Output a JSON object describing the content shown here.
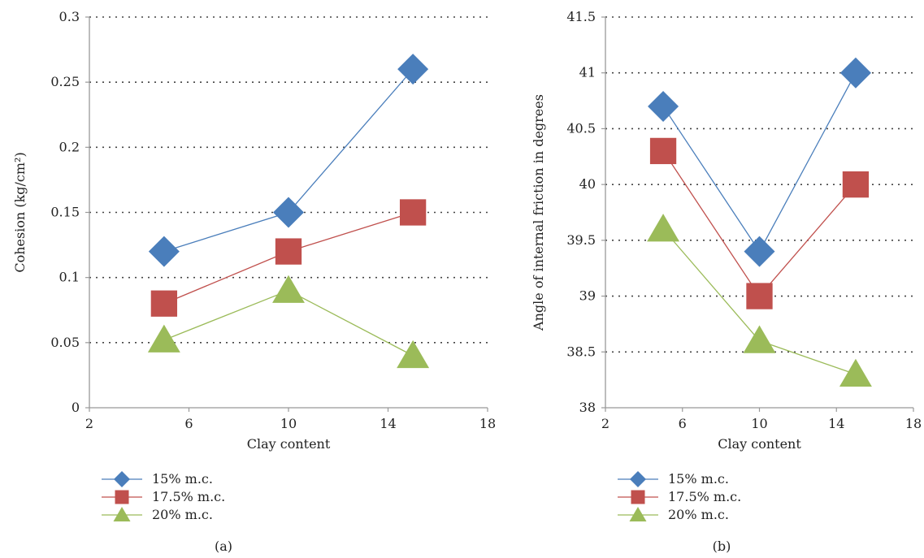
{
  "chart_data": [
    {
      "type": "line",
      "panel": "(a)",
      "xlabel": "Clay content",
      "ylabel": "Cohesion (kg/cm²)",
      "xlim": [
        2,
        18
      ],
      "ylim": [
        0,
        0.3
      ],
      "xticks": [
        2,
        6,
        10,
        14,
        18
      ],
      "yticks": [
        0,
        0.05,
        0.1,
        0.15,
        0.2,
        0.25,
        0.3
      ],
      "yticklabels": [
        "0",
        "0.05",
        "0.1",
        "0.15",
        "0.2",
        "0.25",
        "0.3"
      ],
      "grid": "horizontal dotted",
      "legend_position": "below",
      "x": [
        5,
        10,
        15
      ],
      "series": [
        {
          "name": "15% m.c.",
          "marker": "diamond",
          "color": "#4a7ebb",
          "values": [
            0.12,
            0.15,
            0.26
          ]
        },
        {
          "name": "17.5% m.c.",
          "marker": "square",
          "color": "#c0504d",
          "values": [
            0.08,
            0.12,
            0.15
          ]
        },
        {
          "name": "20% m.c.",
          "marker": "triangle",
          "color": "#9bbb59",
          "values": [
            0.052,
            0.09,
            0.04
          ]
        }
      ]
    },
    {
      "type": "line",
      "panel": "(b)",
      "xlabel": "Clay content",
      "ylabel": "Angle of internal friction in degrees",
      "xlim": [
        2,
        18
      ],
      "ylim": [
        38,
        41.5
      ],
      "xticks": [
        2,
        6,
        10,
        14,
        18
      ],
      "yticks": [
        38,
        38.5,
        39,
        39.5,
        40,
        40.5,
        41,
        41.5
      ],
      "yticklabels": [
        "38",
        "38.5",
        "39",
        "39.5",
        "40",
        "40.5",
        "41",
        "41.5"
      ],
      "grid": "horizontal dotted",
      "legend_position": "below",
      "x": [
        5,
        10,
        15
      ],
      "series": [
        {
          "name": "15% m.c.",
          "marker": "diamond",
          "color": "#4a7ebb",
          "values": [
            40.7,
            39.4,
            41.0
          ]
        },
        {
          "name": "17.5% m.c.",
          "marker": "square",
          "color": "#c0504d",
          "values": [
            40.3,
            39.0,
            40.0
          ]
        },
        {
          "name": "20% m.c.",
          "marker": "triangle",
          "color": "#9bbb59",
          "values": [
            39.6,
            38.6,
            38.3
          ]
        }
      ]
    }
  ]
}
